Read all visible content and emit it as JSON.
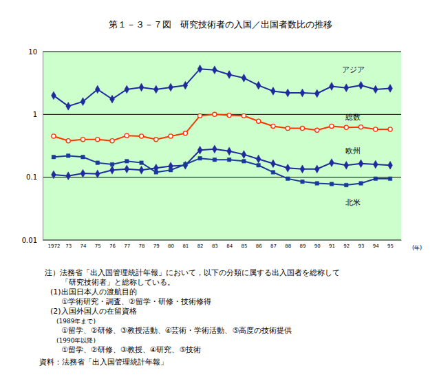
{
  "chart_data": {
    "type": "line",
    "title": "第１－３－７図　研究技術者の入国／出国者数比の推移",
    "x_label": "(年)",
    "categories": [
      "1972",
      "73",
      "74",
      "75",
      "76",
      "77",
      "78",
      "79",
      "80",
      "81",
      "82",
      "83",
      "84",
      "85",
      "86",
      "87",
      "88",
      "89",
      "90",
      "91",
      "92",
      "93",
      "94",
      "95"
    ],
    "log": "y",
    "ylim": [
      0.01,
      10
    ],
    "yticks": [
      0.01,
      0.1,
      1,
      10
    ],
    "grid": true,
    "series": [
      {
        "name": "アジア",
        "color": "#1f2a9c",
        "marker": "diamond",
        "values": [
          2.0,
          1.35,
          1.6,
          2.5,
          1.75,
          2.5,
          2.7,
          2.5,
          2.7,
          2.9,
          5.3,
          5.1,
          4.3,
          3.8,
          2.9,
          2.35,
          2.2,
          2.2,
          2.15,
          2.8,
          2.65,
          2.9,
          2.5,
          2.6
        ]
      },
      {
        "name": "総数",
        "color": "#ff3300",
        "marker": "circle",
        "values": [
          0.45,
          0.38,
          0.4,
          0.4,
          0.38,
          0.46,
          0.45,
          0.4,
          0.45,
          0.5,
          0.95,
          1.0,
          0.97,
          0.95,
          0.78,
          0.65,
          0.6,
          0.6,
          0.56,
          0.65,
          0.62,
          0.63,
          0.58,
          0.58
        ]
      },
      {
        "name": "欧州",
        "color": "#1f2a9c",
        "marker": "diamond",
        "values": [
          0.11,
          0.105,
          0.115,
          0.113,
          0.13,
          0.135,
          0.13,
          0.14,
          0.15,
          0.155,
          0.27,
          0.28,
          0.26,
          0.23,
          0.195,
          0.165,
          0.14,
          0.135,
          0.135,
          0.17,
          0.155,
          0.165,
          0.16,
          0.155
        ]
      },
      {
        "name": "北米",
        "color": "#1a3a9a",
        "marker": "square",
        "values": [
          0.21,
          0.22,
          0.21,
          0.17,
          0.16,
          0.18,
          0.17,
          0.12,
          0.13,
          0.16,
          0.2,
          0.19,
          0.19,
          0.18,
          0.155,
          0.12,
          0.095,
          0.085,
          0.08,
          0.078,
          0.075,
          0.08,
          0.095,
          0.095
        ]
      }
    ],
    "annotations": [
      "注）法務省「出入国管理統計年報」において，以下の分類に属する出入国者を総称して",
      "「研究技術者」と総称している。",
      "(1)出国日本人の渡航目的",
      "①学術研究・調査、②留学・研修・技術修得",
      "(2)入国外国人の在留資格",
      "(1989年まで)",
      "①留学、②研修、③教授活動、④芸術・学術活動、⑤高度の技術提供",
      "(1990年以降)",
      "①留学、②研修、③教授、④研究、⑤技術",
      "資料：法務省「出入国管理統計年報」"
    ]
  }
}
